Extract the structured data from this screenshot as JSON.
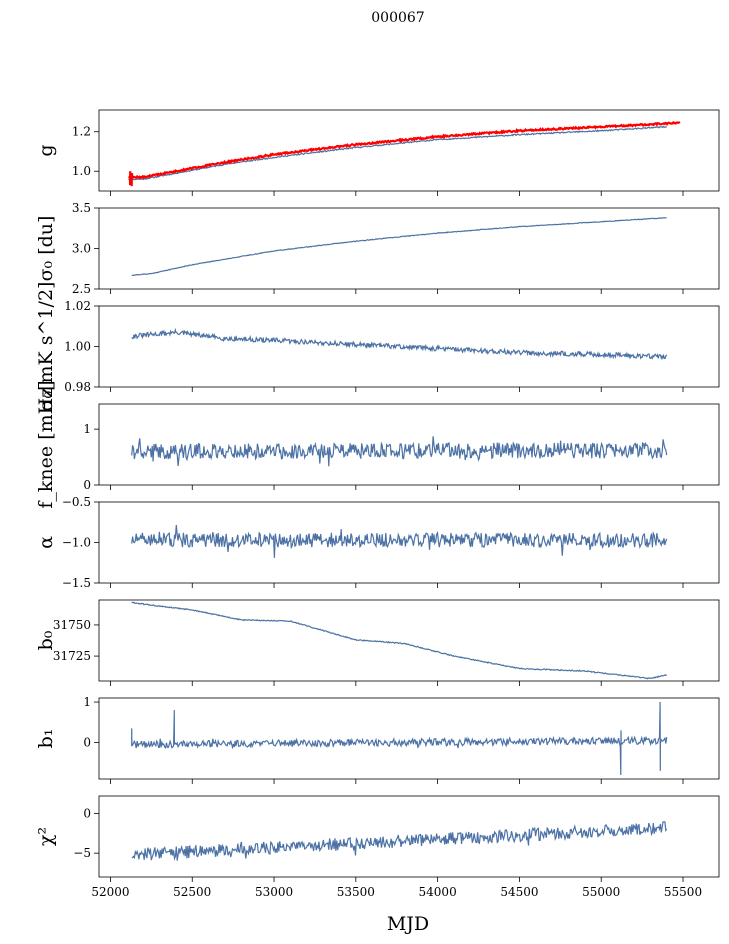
{
  "suptitle": "000067",
  "xlabel": "MJD",
  "colors": {
    "series": "#4c72a5",
    "overlay": "#ff0000"
  },
  "xaxis": {
    "range": [
      51930,
      55720
    ],
    "ticks": [
      52000,
      52500,
      53000,
      53500,
      54000,
      54500,
      55000,
      55500
    ]
  },
  "chart_data": [
    {
      "type": "line",
      "id": "g",
      "ylabel": "g",
      "ylim": [
        0.9,
        1.31
      ],
      "yticks": [
        1.0,
        1.2
      ],
      "series": [
        {
          "kind": "smooth",
          "color": "#4c72a5",
          "x": [
            52110,
            52200,
            52400,
            52700,
            53000,
            53500,
            54000,
            54500,
            55000,
            55400
          ],
          "y": [
            0.96,
            0.96,
            0.99,
            1.035,
            1.07,
            1.12,
            1.16,
            1.185,
            1.205,
            1.225
          ],
          "noise": 0.003,
          "seed": 11
        },
        {
          "kind": "smooth",
          "color": "#ff0000",
          "x": [
            52110,
            52200,
            52400,
            52700,
            53000,
            53500,
            54000,
            54500,
            55000,
            55480
          ],
          "y": [
            0.97,
            0.97,
            1.0,
            1.045,
            1.085,
            1.135,
            1.175,
            1.205,
            1.225,
            1.245
          ],
          "noise": 0.004,
          "seed": 12,
          "spikes": [
            [
              52120,
              0.93,
              1.0
            ],
            [
              52130,
              0.925,
              0.99
            ]
          ]
        }
      ]
    },
    {
      "type": "line",
      "id": "sigma0du",
      "ylabel": "σ₀ [du]",
      "ylim": [
        2.5,
        3.5
      ],
      "yticks": [
        2.5,
        3.0,
        3.5
      ],
      "yticklabels": [
        "2.5",
        "3.0",
        "3.5"
      ],
      "series": [
        {
          "kind": "smooth",
          "color": "#4c72a5",
          "x": [
            52130,
            52250,
            52500,
            53000,
            53500,
            54000,
            54500,
            55000,
            55400
          ],
          "y": [
            2.67,
            2.69,
            2.8,
            2.97,
            3.09,
            3.19,
            3.27,
            3.33,
            3.38
          ],
          "noise": 0.004,
          "seed": 21
        }
      ]
    },
    {
      "type": "line",
      "id": "sigma0mk",
      "ylabel": "σ₀[mK s^1/2]",
      "ylim": [
        0.98,
        1.02
      ],
      "yticks": [
        0.98,
        1.0,
        1.02
      ],
      "yticklabels": [
        "0.98",
        "1.00",
        "1.02"
      ],
      "series": [
        {
          "kind": "smooth",
          "color": "#4c72a5",
          "x": [
            52130,
            52400,
            52700,
            53000,
            53500,
            54000,
            54500,
            55000,
            55400
          ],
          "y": [
            1.005,
            1.007,
            1.004,
            1.003,
            1.001,
            0.999,
            0.997,
            0.996,
            0.995
          ],
          "noise": 0.0012,
          "seed": 31
        }
      ]
    },
    {
      "type": "line",
      "id": "fknee",
      "ylabel": "f_knee [mHz]",
      "ylim": [
        0,
        1.45
      ],
      "yticks": [
        0,
        1
      ],
      "yticklabels": [
        "0",
        "1"
      ],
      "series": [
        {
          "kind": "noisy",
          "color": "#4c72a5",
          "x": [
            52130,
            55400
          ],
          "y": [
            0.6,
            0.62
          ],
          "noise": 0.14,
          "seed": 41,
          "npts": 600
        }
      ]
    },
    {
      "type": "line",
      "id": "alpha",
      "ylabel": "α",
      "ylim": [
        -1.5,
        -0.5
      ],
      "yticks": [
        -1.5,
        -1.0,
        -0.5
      ],
      "yticklabels": [
        "−1.5",
        "−1.0",
        "−0.5"
      ],
      "series": [
        {
          "kind": "noisy",
          "color": "#4c72a5",
          "x": [
            52130,
            55400
          ],
          "y": [
            -0.97,
            -0.97
          ],
          "noise": 0.09,
          "seed": 51,
          "npts": 600
        }
      ]
    },
    {
      "type": "line",
      "id": "b0",
      "ylabel": "b₀",
      "ylim": [
        31705,
        31770
      ],
      "yticks": [
        31725,
        31750
      ],
      "yticklabels": [
        "31725",
        "31750"
      ],
      "series": [
        {
          "kind": "smooth",
          "color": "#4c72a5",
          "x": [
            52130,
            52300,
            52500,
            52800,
            53100,
            53500,
            53800,
            54100,
            54500,
            54900,
            55100,
            55300,
            55400
          ],
          "y": [
            31768,
            31765,
            31762,
            31754,
            31753,
            31738,
            31735,
            31725,
            31715,
            31713,
            31710,
            31707,
            31710
          ],
          "noise": 0.4,
          "seed": 61
        }
      ]
    },
    {
      "type": "line",
      "id": "b1",
      "ylabel": "b₁",
      "ylim": [
        -0.9,
        1.1
      ],
      "yticks": [
        0,
        1
      ],
      "yticklabels": [
        "0",
        "1"
      ],
      "series": [
        {
          "kind": "noisy",
          "color": "#4c72a5",
          "x": [
            52130,
            55400
          ],
          "y": [
            -0.05,
            0.05
          ],
          "noise": 0.09,
          "seed": 71,
          "npts": 600,
          "spikes": [
            [
              52130,
              0.35,
              -0.05
            ],
            [
              52390,
              0.8,
              -0.05
            ],
            [
              55120,
              -0.8,
              0.3
            ],
            [
              55360,
              1.0,
              -0.7
            ]
          ]
        }
      ]
    },
    {
      "type": "line",
      "id": "chi2",
      "ylabel": "χ²",
      "ylim": [
        -8,
        2.2
      ],
      "yticks": [
        -5,
        0
      ],
      "yticklabels": [
        "−5",
        "0"
      ],
      "series": [
        {
          "kind": "noisy",
          "color": "#4c72a5",
          "x": [
            52130,
            55400
          ],
          "y": [
            -5.2,
            -1.8
          ],
          "noise": 0.8,
          "seed": 81,
          "npts": 600
        }
      ]
    }
  ]
}
